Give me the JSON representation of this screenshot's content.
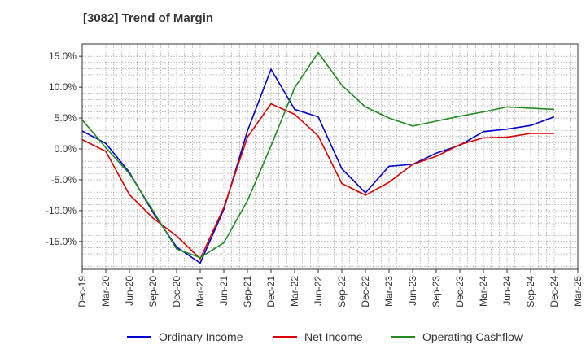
{
  "chart_data": {
    "type": "line",
    "title": "[3082]  Trend of Margin",
    "x": [
      "Dec-19",
      "Mar-20",
      "Jun-20",
      "Sep-20",
      "Dec-20",
      "Mar-21",
      "Jun-21",
      "Sep-21",
      "Dec-21",
      "Mar-22",
      "Jun-22",
      "Sep-22",
      "Dec-22",
      "Mar-23",
      "Jun-23",
      "Sep-23",
      "Dec-23",
      "Mar-24",
      "Jun-24",
      "Sep-24",
      "Dec-24",
      "Mar-25"
    ],
    "x_tick_labels": [
      "Dec-19",
      "Mar-20",
      "Jun-20",
      "Sep-20",
      "Dec-20",
      "Mar-21",
      "Jun-21",
      "Sep-21",
      "Dec-21",
      "Mar-22",
      "Jun-22",
      "Sep-22",
      "Dec-22",
      "Mar-23",
      "Jun-23",
      "Sep-23",
      "Dec-23",
      "Mar-24",
      "Jun-24",
      "Sep-24",
      "Dec-24",
      "Mar-25"
    ],
    "y_ticks": [
      15,
      10,
      5,
      0,
      -5,
      -10,
      -15
    ],
    "y_tick_labels": [
      "15.0%",
      "10.0%",
      "5.0%",
      "0.0%",
      "-5.0%",
      "-10.0%",
      "-15.0%"
    ],
    "ylim": [
      -19.5,
      17.0
    ],
    "grid": true,
    "legend_position": "bottom",
    "series": [
      {
        "name": "Ordinary Income",
        "color": "#0000cc",
        "values": [
          2.9,
          0.9,
          -3.8,
          -10.3,
          -15.9,
          -18.5,
          -9.8,
          2.9,
          12.9,
          6.4,
          5.2,
          -3.2,
          -7.1,
          -2.8,
          -2.5,
          -0.7,
          0.6,
          2.8,
          3.2,
          3.8,
          5.2,
          null
        ]
      },
      {
        "name": "Net Income",
        "color": "#dd0000",
        "values": [
          1.5,
          -0.4,
          -7.4,
          -11.2,
          -14.1,
          -17.8,
          -9.5,
          1.9,
          7.3,
          5.6,
          2.1,
          -5.6,
          -7.5,
          -5.4,
          -2.5,
          -1.2,
          0.7,
          1.8,
          1.9,
          2.5,
          2.5,
          null
        ]
      },
      {
        "name": "Operating Cashflow",
        "color": "#228b22",
        "values": [
          4.7,
          0.2,
          -4.0,
          -10.0,
          -16.2,
          -17.6,
          -15.2,
          -8.4,
          0.5,
          9.9,
          15.6,
          10.3,
          6.8,
          5.0,
          3.7,
          4.5,
          5.3,
          6.0,
          6.8,
          6.6,
          6.4,
          null
        ]
      }
    ]
  }
}
